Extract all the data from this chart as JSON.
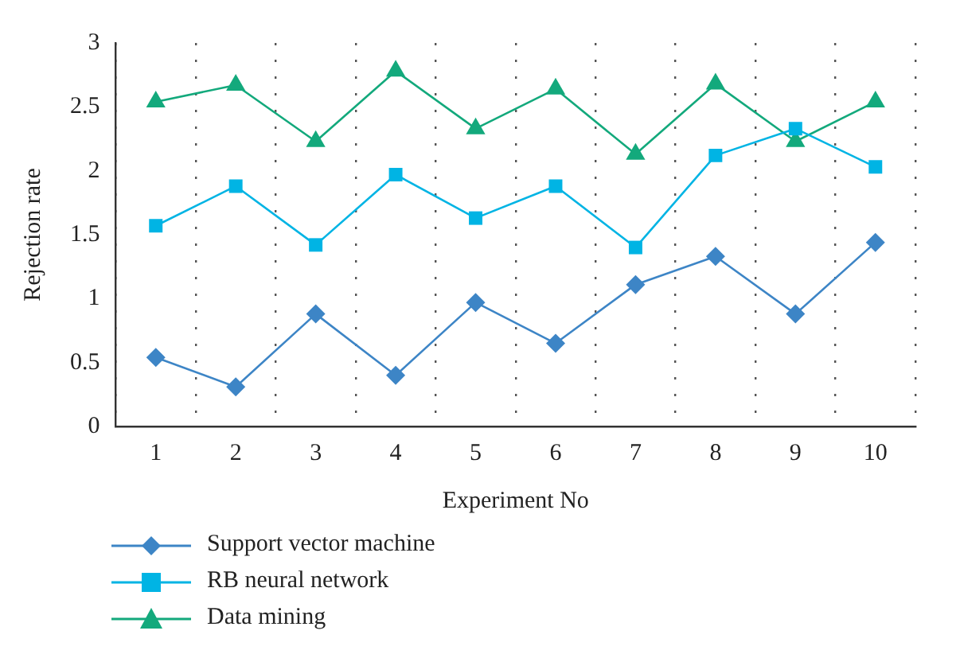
{
  "chart_data": {
    "type": "line",
    "xlabel": "Experiment No",
    "ylabel": "Rejection rate",
    "categories": [
      "1",
      "2",
      "3",
      "4",
      "5",
      "6",
      "7",
      "8",
      "9",
      "10"
    ],
    "series": [
      {
        "name": "Support vector machine",
        "color": "#3d85c6",
        "marker": "diamond",
        "values": [
          0.54,
          0.31,
          0.88,
          0.4,
          0.97,
          0.65,
          1.11,
          1.33,
          0.88,
          1.44
        ]
      },
      {
        "name": "RB neural network",
        "color": "#00b4e4",
        "marker": "square",
        "values": [
          1.57,
          1.88,
          1.42,
          1.97,
          1.63,
          1.88,
          1.4,
          2.12,
          2.33,
          2.03
        ]
      },
      {
        "name": "Data mining",
        "color": "#13a97c",
        "marker": "triangle",
        "values": [
          2.54,
          2.67,
          2.23,
          2.78,
          2.33,
          2.64,
          2.13,
          2.68,
          2.23,
          2.54
        ]
      }
    ],
    "ylim": [
      0,
      3
    ],
    "yticks": [
      0,
      0.5,
      1,
      1.5,
      2,
      2.5,
      3
    ],
    "grid": "x",
    "legend": "bottom",
    "line_style": "solid"
  }
}
